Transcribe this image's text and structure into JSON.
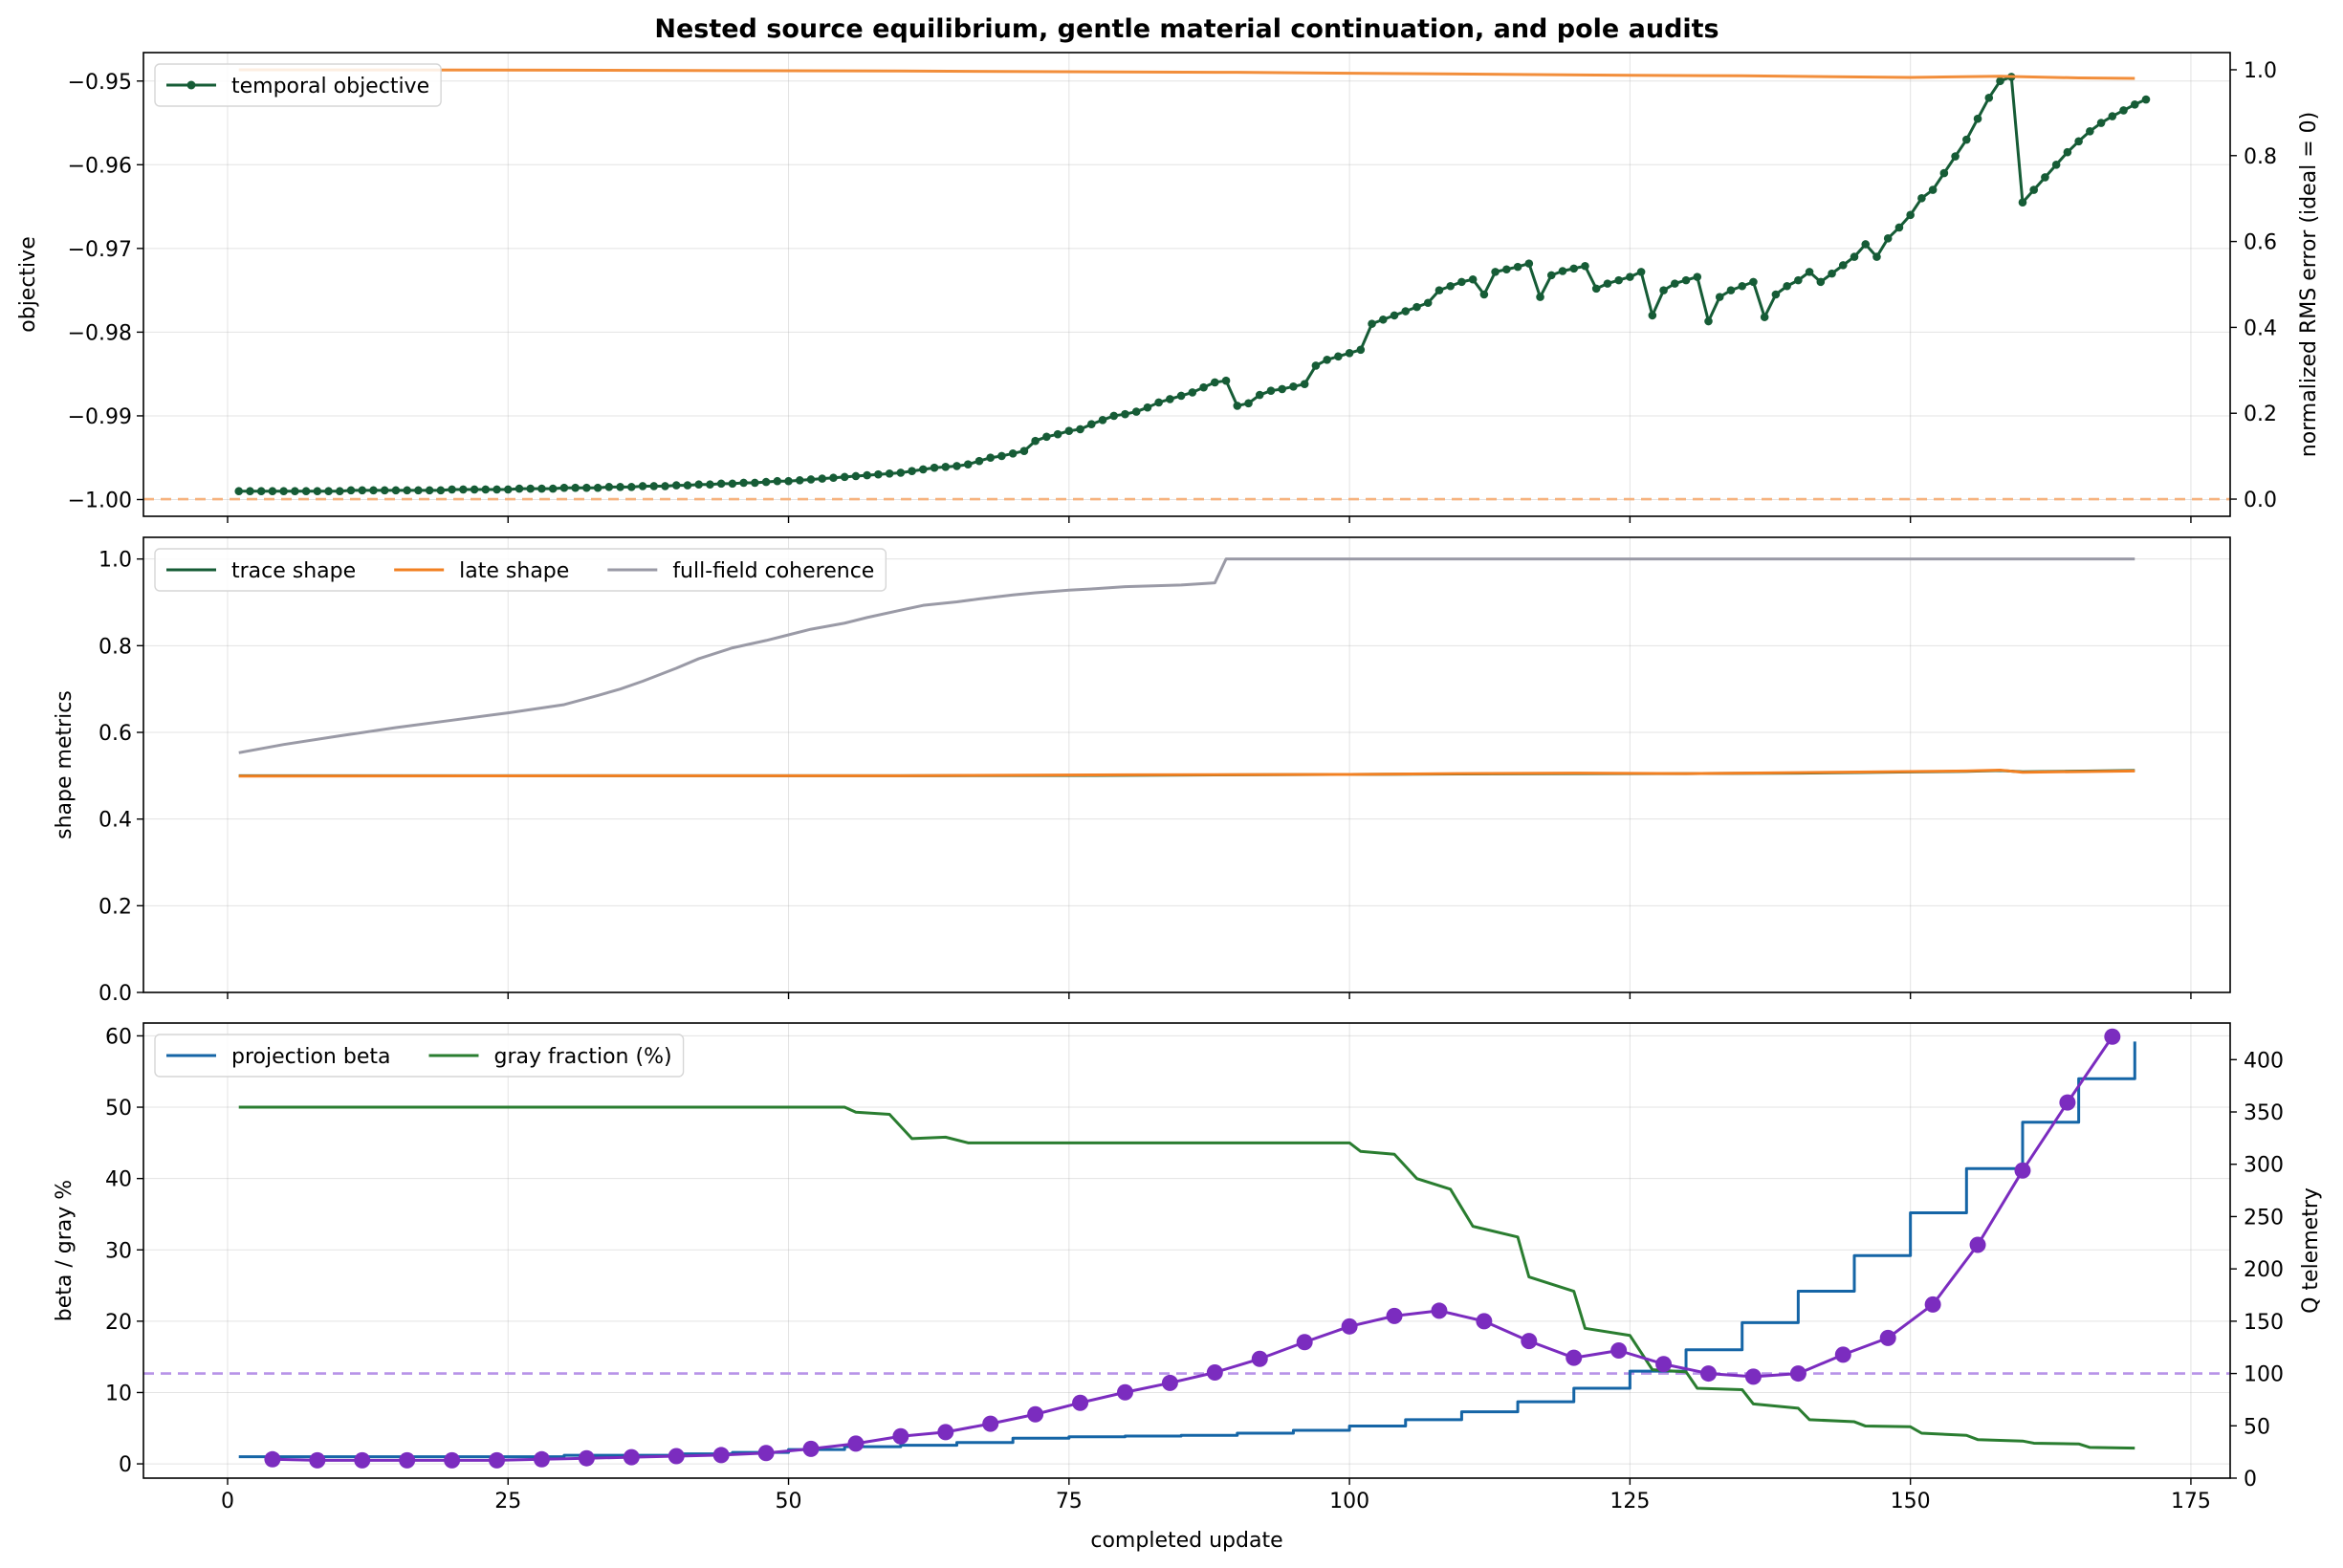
{
  "chart_data": {
    "type": "line",
    "title": "Nested source equilibrium, gentle material continuation, and pole audits",
    "xlabel": "completed update",
    "xlim": [
      -7.5,
      178.5
    ],
    "xticks": [
      0,
      25,
      50,
      75,
      100,
      125,
      150,
      175
    ],
    "panels": [
      {
        "ylabel": "objective",
        "ylim": [
          -1.002,
          -0.9466
        ],
        "yticks": [
          -1.0,
          -0.99,
          -0.98,
          -0.97,
          -0.96,
          -0.95
        ],
        "ytick_labels": [
          "−1.00",
          "−0.99",
          "−0.98",
          "−0.97",
          "−0.96",
          "−0.95"
        ],
        "y2label": "normalized RMS error (ideal = 0)",
        "y2lim": [
          -0.04,
          1.04
        ],
        "y2ticks": [
          0.0,
          0.2,
          0.4,
          0.6,
          0.8,
          1.0
        ],
        "y2tick_labels": [
          "0.0",
          "0.2",
          "0.4",
          "0.6",
          "0.8",
          "1.0"
        ],
        "legend": {
          "placement": "upper-left",
          "entries": [
            "temporal objective"
          ]
        },
        "series": [
          {
            "name": "temporal objective",
            "axis": "left",
            "color": "#165c36",
            "markers": true,
            "x_start": 1,
            "x_step": 1,
            "y": [
              -0.999,
              -0.999,
              -0.999,
              -0.999,
              -0.999,
              -0.999,
              -0.999,
              -0.999,
              -0.999,
              -0.999,
              -0.9989,
              -0.9989,
              -0.9989,
              -0.9989,
              -0.9989,
              -0.9989,
              -0.9989,
              -0.9989,
              -0.9989,
              -0.9988,
              -0.9988,
              -0.9988,
              -0.9988,
              -0.9988,
              -0.9988,
              -0.9987,
              -0.9987,
              -0.9987,
              -0.9987,
              -0.9986,
              -0.9986,
              -0.9986,
              -0.9986,
              -0.9985,
              -0.9985,
              -0.9985,
              -0.9984,
              -0.9984,
              -0.9984,
              -0.9983,
              -0.9983,
              -0.9982,
              -0.9982,
              -0.9981,
              -0.9981,
              -0.998,
              -0.998,
              -0.9979,
              -0.9978,
              -0.9978,
              -0.9977,
              -0.9976,
              -0.9975,
              -0.9974,
              -0.9973,
              -0.9972,
              -0.9971,
              -0.997,
              -0.9969,
              -0.9968,
              -0.9966,
              -0.9964,
              -0.9962,
              -0.9961,
              -0.996,
              -0.9958,
              -0.9954,
              -0.995,
              -0.9948,
              -0.9945,
              -0.9942,
              -0.993,
              -0.9925,
              -0.9922,
              -0.9918,
              -0.9916,
              -0.991,
              -0.9905,
              -0.99,
              -0.9898,
              -0.9895,
              -0.989,
              -0.9884,
              -0.988,
              -0.9876,
              -0.9872,
              -0.9866,
              -0.986,
              -0.9858,
              -0.9888,
              -0.9885,
              -0.9875,
              -0.987,
              -0.9868,
              -0.9865,
              -0.9862,
              -0.984,
              -0.9833,
              -0.9829,
              -0.9825,
              -0.9821,
              -0.979,
              -0.9785,
              -0.978,
              -0.9775,
              -0.977,
              -0.9765,
              -0.975,
              -0.9745,
              -0.974,
              -0.9737,
              -0.9755,
              -0.9728,
              -0.9725,
              -0.9722,
              -0.9718,
              -0.9758,
              -0.9732,
              -0.9727,
              -0.9724,
              -0.9721,
              -0.9748,
              -0.9742,
              -0.9738,
              -0.9734,
              -0.9728,
              -0.978,
              -0.975,
              -0.9742,
              -0.9738,
              -0.9734,
              -0.9787,
              -0.9758,
              -0.975,
              -0.9745,
              -0.974,
              -0.9782,
              -0.9755,
              -0.9745,
              -0.9738,
              -0.9728,
              -0.974,
              -0.973,
              -0.972,
              -0.971,
              -0.9695,
              -0.971,
              -0.9688,
              -0.9675,
              -0.966,
              -0.964,
              -0.963,
              -0.961,
              -0.959,
              -0.957,
              -0.9545,
              -0.952,
              -0.95,
              -0.9495,
              -0.9645,
              -0.963,
              -0.9615,
              -0.96,
              -0.9585,
              -0.9572,
              -0.956,
              -0.955,
              -0.9542,
              -0.9535,
              -0.9528,
              -0.9522
            ]
          },
          {
            "name": "",
            "axis": "right",
            "color": "#f28e3b",
            "markers": false,
            "x": [
              1,
              30,
              60,
              90,
              105,
              115,
              125,
              135,
              150,
              158,
              165,
              170
            ],
            "y": [
              1.0,
              0.999,
              0.997,
              0.994,
              0.991,
              0.989,
              0.987,
              0.986,
              0.982,
              0.985,
              0.981,
              0.98
            ]
          }
        ],
        "hlines": [
          {
            "axis": "right",
            "y": 0.0,
            "color": "#f6b27d",
            "style": "dashed"
          }
        ]
      },
      {
        "ylabel": "shape metrics",
        "ylim": [
          0.0,
          1.05
        ],
        "yticks": [
          0.0,
          0.2,
          0.4,
          0.6,
          0.8,
          1.0
        ],
        "ytick_labels": [
          "0.0",
          "0.2",
          "0.4",
          "0.6",
          "0.8",
          "1.0"
        ],
        "legend": {
          "placement": "upper-left",
          "entries": [
            "trace shape",
            "late shape",
            "full-field coherence"
          ]
        },
        "series": [
          {
            "name": "trace shape",
            "color": "#165c36",
            "x": [
              1,
              40,
              60,
              80,
              100,
              110,
              120,
              130,
              140,
              155,
              158,
              160,
              170
            ],
            "y": [
              0.5,
              0.5,
              0.5,
              0.501,
              0.503,
              0.504,
              0.505,
              0.505,
              0.506,
              0.51,
              0.512,
              0.509,
              0.512
            ]
          },
          {
            "name": "late shape",
            "color": "#f28022",
            "x": [
              1,
              40,
              60,
              80,
              100,
              110,
              120,
              130,
              140,
              155,
              158,
              160,
              170
            ],
            "y": [
              0.499,
              0.5,
              0.5,
              0.502,
              0.503,
              0.505,
              0.506,
              0.505,
              0.507,
              0.511,
              0.513,
              0.508,
              0.511
            ]
          },
          {
            "name": "full-field coherence",
            "color": "#9a9aa6",
            "x": [
              1,
              5,
              10,
              15,
              20,
              25,
              30,
              33,
              35,
              37,
              40,
              42,
              45,
              48,
              50,
              52,
              55,
              57,
              60,
              62,
              65,
              67,
              70,
              72,
              75,
              77,
              80,
              85,
              88,
              89,
              100,
              170
            ],
            "y": [
              0.553,
              0.572,
              0.592,
              0.611,
              0.628,
              0.645,
              0.664,
              0.685,
              0.7,
              0.718,
              0.748,
              0.77,
              0.795,
              0.812,
              0.825,
              0.838,
              0.852,
              0.865,
              0.882,
              0.893,
              0.901,
              0.908,
              0.917,
              0.922,
              0.928,
              0.931,
              0.936,
              0.94,
              0.945,
              1.0,
              1.0,
              1.0
            ]
          }
        ]
      },
      {
        "ylabel": "beta / gray %",
        "ylim": [
          -2.0,
          61.8
        ],
        "yticks": [
          0,
          10,
          20,
          30,
          40,
          50,
          60
        ],
        "ytick_labels": [
          "0",
          "10",
          "20",
          "30",
          "40",
          "50",
          "60"
        ],
        "y2label": "Q telemetry",
        "y2lim": [
          0,
          435
        ],
        "y2ticks": [
          0,
          50,
          100,
          150,
          200,
          250,
          300,
          350,
          400
        ],
        "y2tick_labels": [
          "0",
          "50",
          "100",
          "150",
          "200",
          "250",
          "300",
          "350",
          "400"
        ],
        "legend": {
          "placement": "upper-left",
          "entries": [
            "projection beta",
            "gray fraction (%)"
          ]
        },
        "series": [
          {
            "name": "projection beta",
            "axis": "left",
            "color": "#1565a6",
            "step": true,
            "x": [
              1,
              10,
              20,
              30,
              40,
              45,
              50,
              55,
              60,
              65,
              70,
              75,
              80,
              85,
              90,
              95,
              100,
              105,
              110,
              115,
              120,
              125,
              130,
              135,
              140,
              145,
              150,
              155,
              160,
              165,
              170
            ],
            "y": [
              1.0,
              1.0,
              1.0,
              1.2,
              1.4,
              1.6,
              2.0,
              2.4,
              2.6,
              3.0,
              3.6,
              3.8,
              3.9,
              4.0,
              4.3,
              4.7,
              5.3,
              6.2,
              7.3,
              8.7,
              10.6,
              13.0,
              16.0,
              19.8,
              24.2,
              29.2,
              35.2,
              41.4,
              47.9,
              54.0,
              59.2
            ]
          },
          {
            "name": "gray fraction (%)",
            "axis": "left",
            "color": "#2a7d30",
            "x": [
              1,
              55,
              56,
              59,
              61,
              64,
              66,
              100,
              101,
              104,
              106,
              109,
              111,
              115,
              116,
              120,
              121,
              125,
              127,
              130,
              131,
              135,
              136,
              140,
              141,
              145,
              146,
              150,
              151,
              155,
              156,
              160,
              161,
              165,
              166,
              170
            ],
            "y": [
              50.0,
              50.0,
              49.3,
              49.0,
              45.6,
              45.8,
              45.0,
              45.0,
              43.8,
              43.4,
              40.0,
              38.5,
              33.3,
              31.8,
              26.2,
              24.2,
              19.0,
              18.0,
              13.2,
              12.9,
              10.6,
              10.4,
              8.4,
              7.8,
              6.2,
              5.9,
              5.3,
              5.2,
              4.3,
              4.0,
              3.4,
              3.2,
              2.9,
              2.8,
              2.3,
              2.2
            ]
          },
          {
            "name": "",
            "axis": "right",
            "color": "#7b2cbf",
            "markers": true,
            "x": [
              4,
              8,
              12,
              16,
              20,
              24,
              28,
              32,
              36,
              40,
              44,
              48,
              52,
              56,
              60,
              64,
              68,
              72,
              76,
              80,
              84,
              88,
              92,
              96,
              100,
              104,
              108,
              112,
              116,
              120,
              124,
              128,
              132,
              136,
              140,
              144,
              148,
              152,
              156,
              160,
              164,
              168
            ],
            "y": [
              18,
              17,
              17,
              17,
              17,
              17,
              18,
              19,
              20,
              21,
              22,
              24,
              28,
              33,
              40,
              44,
              52,
              61,
              72,
              82,
              91,
              101,
              114,
              130,
              145,
              155,
              160,
              150,
              131,
              115,
              122,
              109,
              100,
              97,
              100,
              118,
              134,
              166,
              223,
              294,
              359,
              422
            ]
          }
        ],
        "hlines": [
          {
            "axis": "right",
            "y": 100,
            "color": "#b793e8",
            "style": "dashed"
          }
        ]
      }
    ]
  }
}
